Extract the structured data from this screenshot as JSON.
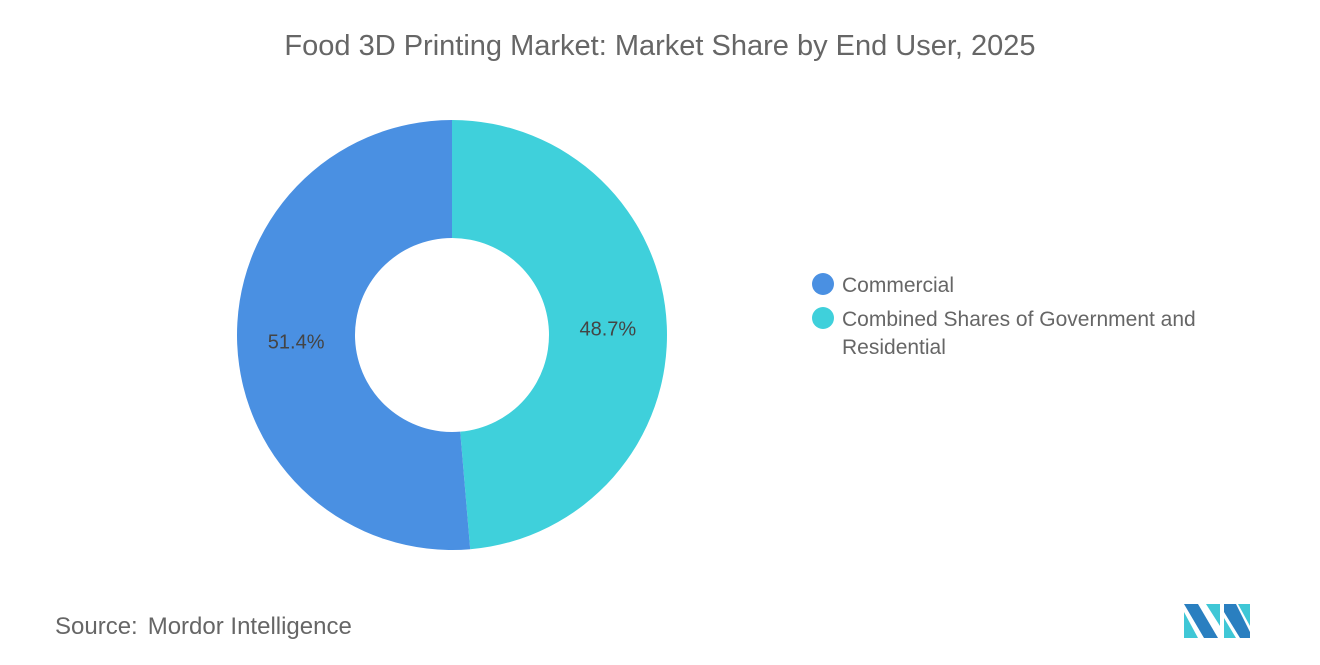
{
  "chart_data": {
    "type": "pie",
    "variant": "donut",
    "title": "Food 3D Printing Market: Market Share by End User, 2025",
    "categories": [
      "Commercial",
      "Combined Shares of Government and Residential"
    ],
    "values": [
      51.4,
      48.7
    ],
    "data_labels": [
      "51.4%",
      "48.7%"
    ],
    "colors": [
      "#4a90e2",
      "#3fd0db"
    ],
    "legend_position": "right"
  },
  "source": {
    "label": "Source:",
    "value": "Mordor Intelligence"
  },
  "logo": {
    "text": "Mordor Intelligence"
  }
}
